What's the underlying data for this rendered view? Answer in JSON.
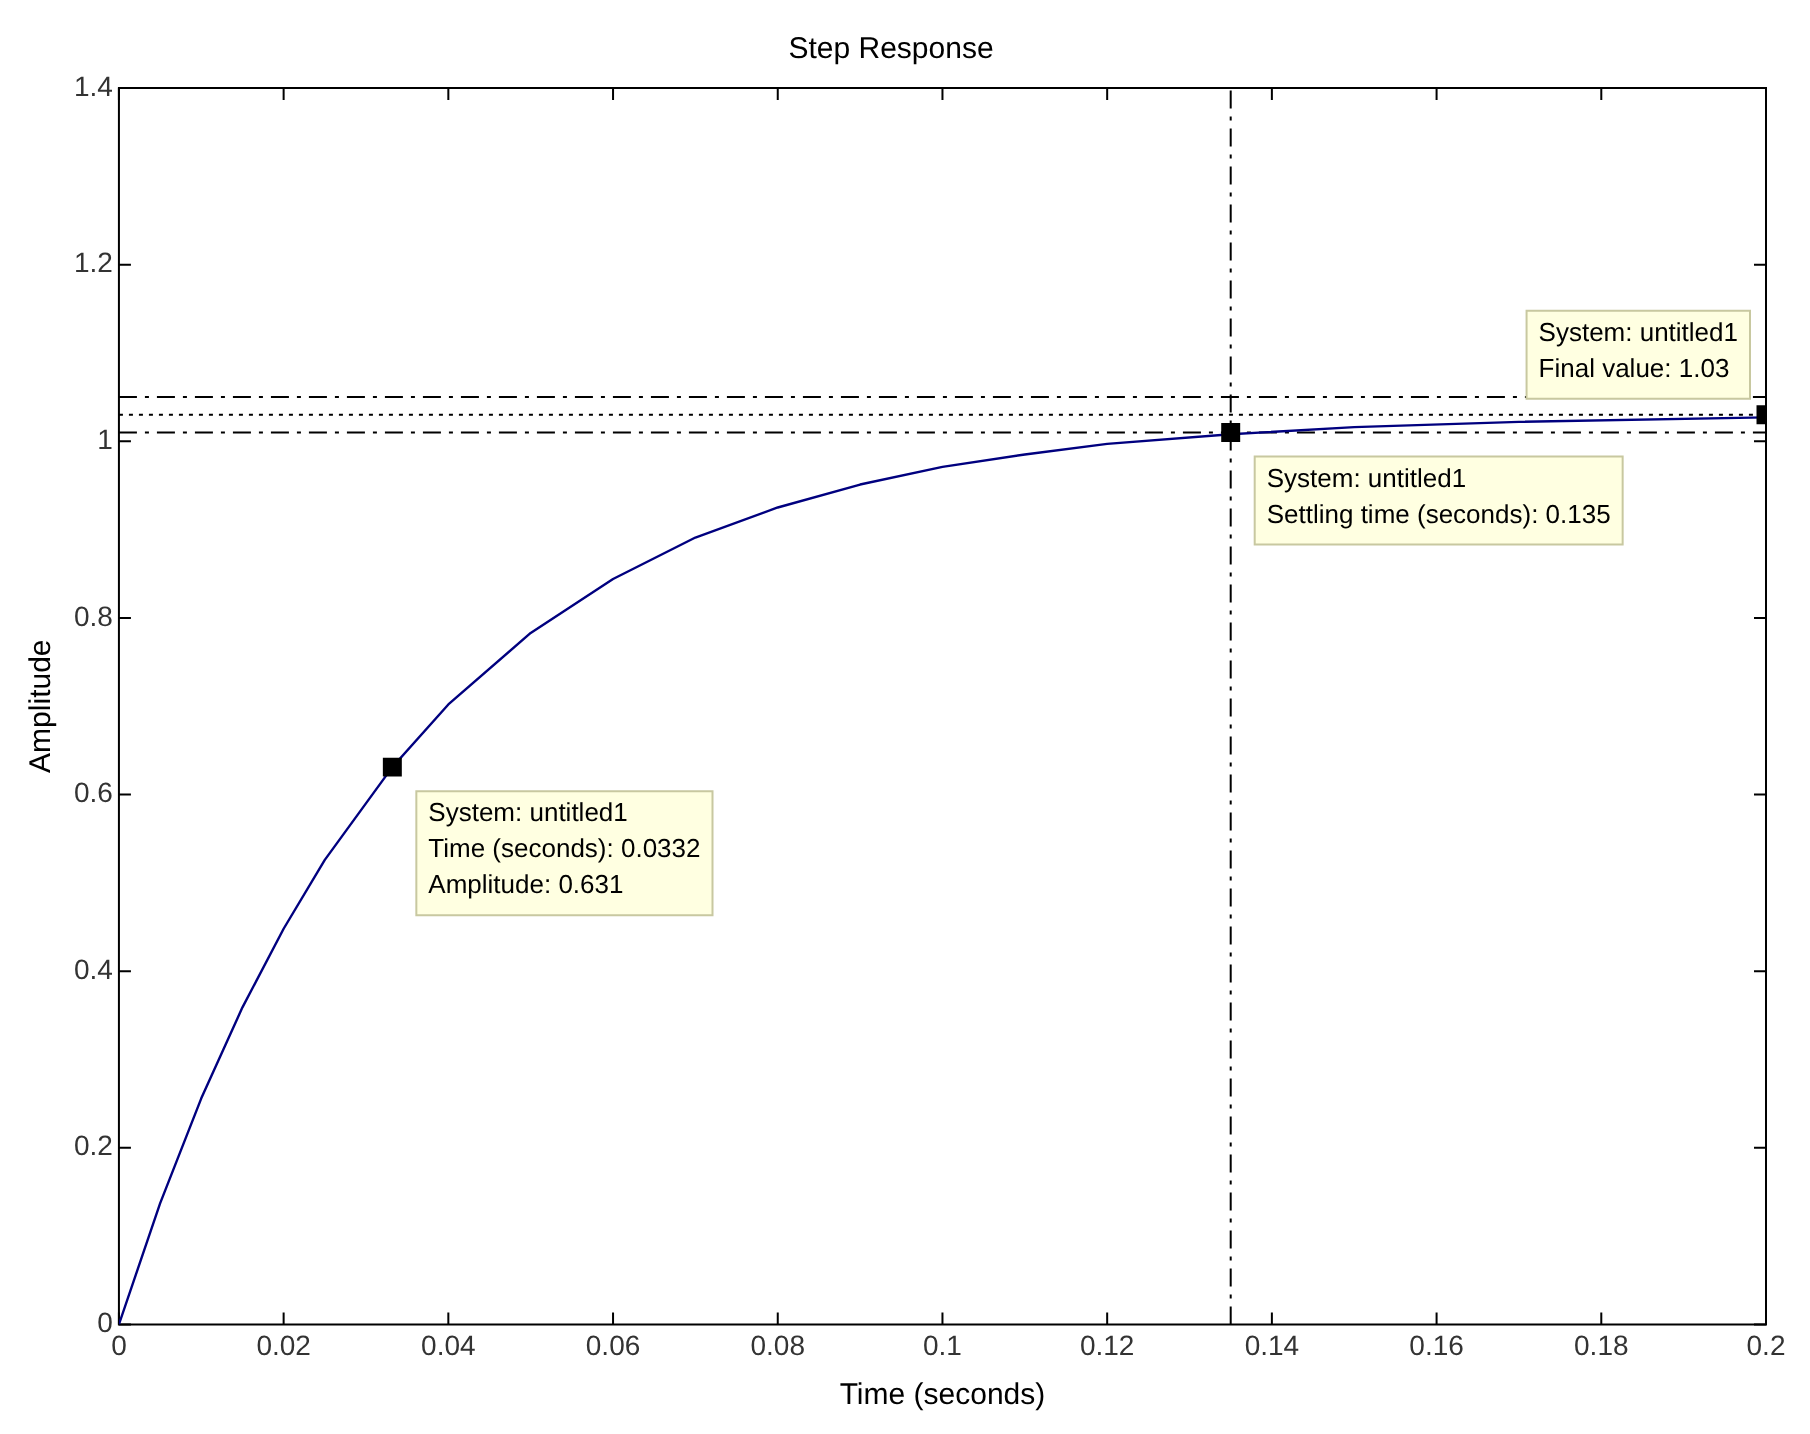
{
  "chart_data": {
    "type": "line",
    "title": "Step Response",
    "xlabel": "Time (seconds)",
    "ylabel": "Amplitude",
    "xlim": [
      0,
      0.2
    ],
    "xticks": [
      0,
      0.02,
      0.04,
      0.06,
      0.08,
      0.1,
      0.12,
      0.14,
      0.16,
      0.18,
      0.2
    ],
    "ylim": [
      0,
      1.4
    ],
    "yticks": [
      0,
      0.2,
      0.4,
      0.6,
      0.8,
      1,
      1.2,
      1.4
    ],
    "grid": false,
    "legend": false,
    "series": [
      {
        "color": "#00007f",
        "marker": "none",
        "x": [
          0,
          0.005,
          0.01,
          0.015,
          0.02,
          0.025,
          0.0332,
          0.04,
          0.05,
          0.06,
          0.07,
          0.08,
          0.09,
          0.1,
          0.11,
          0.12,
          0.135,
          0.15,
          0.17,
          0.2
        ],
        "values": [
          0,
          0.137,
          0.256,
          0.359,
          0.448,
          0.526,
          0.631,
          0.702,
          0.783,
          0.844,
          0.891,
          0.925,
          0.951,
          0.971,
          0.985,
          0.997,
          1.008,
          1.016,
          1.022,
          1.027
        ]
      },
      {
        "type": "scatter",
        "color": "#000000",
        "marker": "square",
        "x": [
          0.0332,
          0.135,
          0.2
        ],
        "values": [
          0.631,
          1.01,
          1.03
        ]
      }
    ],
    "ref_lines": [
      {
        "axis": "y",
        "value": 1.05,
        "color": "#000000",
        "line_style": "dashed"
      },
      {
        "axis": "y",
        "value": 1.01,
        "color": "#000000",
        "line_style": "dashed"
      },
      {
        "axis": "y",
        "value": 1.03,
        "color": "#000000",
        "line_style": "dotted"
      },
      {
        "axis": "x",
        "value": 0.135,
        "color": "#000000",
        "line_style": "dashed"
      }
    ],
    "annotations": [
      {
        "text": "System: untitled1\nTime (seconds): 0.0332\nAmplitude: 0.631",
        "x": 0.0332,
        "y": 0.631
      },
      {
        "text": "System: untitled1\nSettling time (seconds): 0.135",
        "x": 0.135,
        "y": 1.01
      },
      {
        "text": "System: untitled1\nFinal value: 1.03",
        "x": 0.2,
        "y": 1.03
      }
    ]
  }
}
